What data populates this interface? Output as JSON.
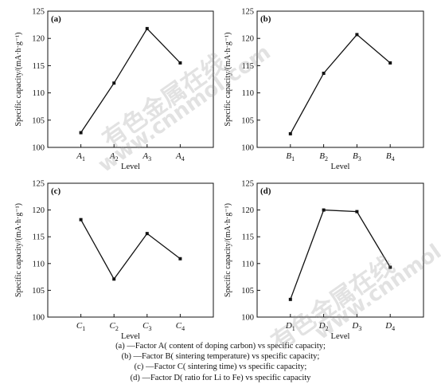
{
  "chart_data": [
    {
      "type": "line",
      "panel_label": "(a)",
      "categories": [
        "A1",
        "A2",
        "A3",
        "A4"
      ],
      "category_labels": [
        {
          "main": "A",
          "sub": "1"
        },
        {
          "main": "A",
          "sub": "2"
        },
        {
          "main": "A",
          "sub": "3"
        },
        {
          "main": "A",
          "sub": "4"
        }
      ],
      "values": [
        102.7,
        111.8,
        121.8,
        115.5
      ],
      "xlabel": "Level",
      "ylabel": "Specific capacity/(mA·h·g⁻¹)",
      "ylim": [
        100,
        125
      ],
      "yticks": [
        100,
        105,
        110,
        115,
        120,
        125
      ],
      "grid": false
    },
    {
      "type": "line",
      "panel_label": "(b)",
      "categories": [
        "B1",
        "B2",
        "B3",
        "B4"
      ],
      "category_labels": [
        {
          "main": "B",
          "sub": "1"
        },
        {
          "main": "B",
          "sub": "2"
        },
        {
          "main": "B",
          "sub": "3"
        },
        {
          "main": "B",
          "sub": "4"
        }
      ],
      "values": [
        102.5,
        113.6,
        120.7,
        115.5
      ],
      "xlabel": "Level",
      "ylabel": "Specific capacity/(mA·h·g⁻¹)",
      "ylim": [
        100,
        125
      ],
      "yticks": [
        100,
        105,
        110,
        115,
        120,
        125
      ],
      "grid": false
    },
    {
      "type": "line",
      "panel_label": "(c)",
      "categories": [
        "C1",
        "C2",
        "C3",
        "C4"
      ],
      "category_labels": [
        {
          "main": "C",
          "sub": "1"
        },
        {
          "main": "C",
          "sub": "2"
        },
        {
          "main": "C",
          "sub": "3"
        },
        {
          "main": "C",
          "sub": "4"
        }
      ],
      "values": [
        118.2,
        107.1,
        115.6,
        110.9
      ],
      "xlabel": "Level",
      "ylabel": "Specific capacity/(mA·h·g⁻¹)",
      "ylim": [
        100,
        125
      ],
      "yticks": [
        100,
        105,
        110,
        115,
        120,
        125
      ],
      "grid": false
    },
    {
      "type": "line",
      "panel_label": "(d)",
      "categories": [
        "D1",
        "D2",
        "D3",
        "D4"
      ],
      "category_labels": [
        {
          "main": "D",
          "sub": "1"
        },
        {
          "main": "D",
          "sub": "2"
        },
        {
          "main": "D",
          "sub": "3"
        },
        {
          "main": "D",
          "sub": "4"
        }
      ],
      "values": [
        103.3,
        120.0,
        119.7,
        109.3
      ],
      "xlabel": "Level",
      "ylabel": "Specific capacity/(mA·h·g⁻¹)",
      "ylim": [
        100,
        125
      ],
      "yticks": [
        100,
        105,
        110,
        115,
        120,
        125
      ],
      "grid": false
    }
  ],
  "caption": {
    "line1": "(a) —Factor A( content of doping carbon)  vs specific capacity;",
    "line2": "(b) —Factor B( sintering temperature)  vs specific capacity;",
    "line3": "(c) —Factor C( sintering time)  vs specific capacity;",
    "line4": "(d) —Factor D( ratio for Li to Fe)  vs specific capacity"
  },
  "watermark": {
    "text_cn": "有色金属在线",
    "text_url": "www.cnnmol.com"
  },
  "colors": {
    "line": "#111111",
    "axis": "#111111",
    "watermark": "#9a9a9a"
  }
}
